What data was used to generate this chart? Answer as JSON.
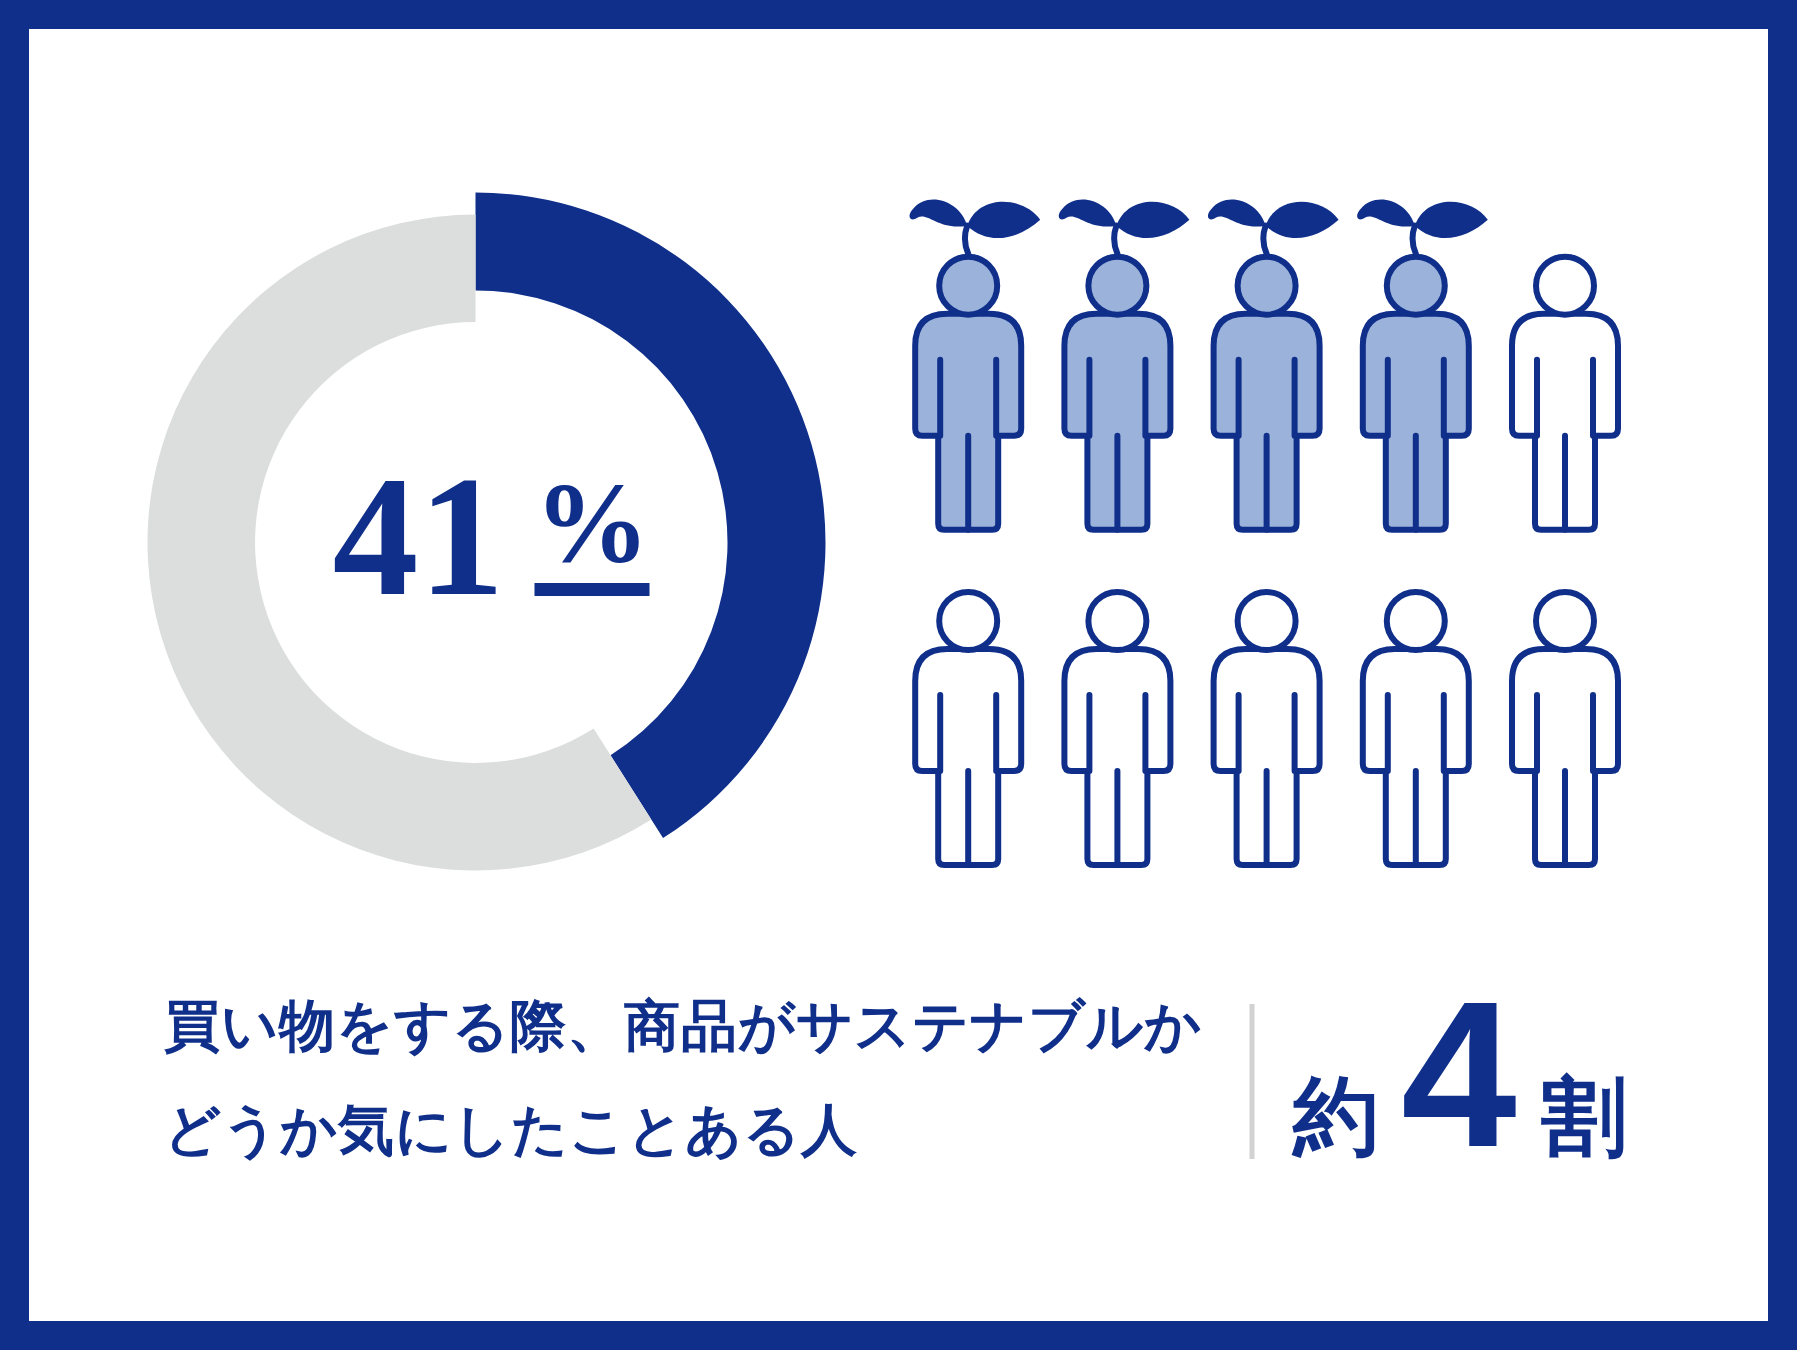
{
  "chart_data": {
    "type": "donut",
    "categories": [
      null,
      null
    ],
    "values": [
      41,
      59
    ],
    "colors": [
      "#0f2f8a",
      "#dcdddd"
    ],
    "value_labels": [
      "41%",
      null
    ],
    "title": "買い物をする際、商品がサステナブルかどうか気にしたことある人",
    "annotations": [
      "約4割"
    ]
  }
}
